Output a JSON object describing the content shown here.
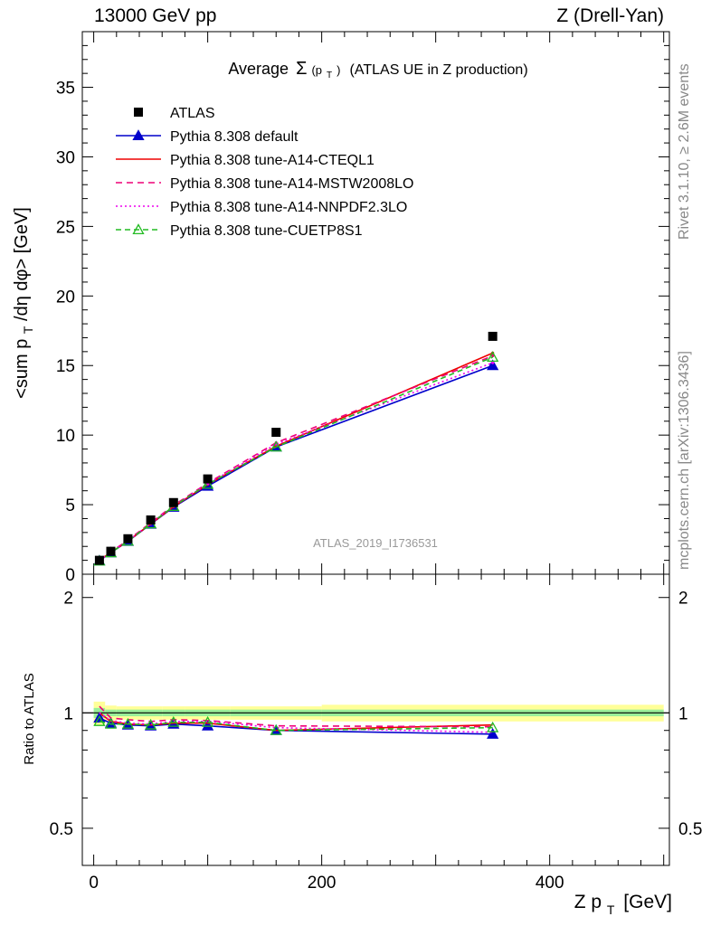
{
  "header": {
    "left": "13000 GeV pp",
    "right": "Z (Drell-Yan)"
  },
  "side_labels": {
    "rivet": "Rivet 3.1.10, ≥ 2.6M events",
    "mcplots": "mcplots.cern.ch [arXiv:1306.3436]"
  },
  "watermark": "ATLAS_2019_I1736531",
  "chart_data": {
    "type": "line",
    "title_prefix": "Average",
    "title_symbol": "Σ",
    "title_arg": "(p",
    "title_arg_sub": "T",
    "title_arg_close": ")",
    "title_suffix": "(ATLAS UE in Z production)",
    "xlabel": "Z p",
    "xlabel_sub": "T",
    "xlabel_unit": "[GeV]",
    "ylabel": "<sum p",
    "ylabel_sub": "T",
    "ylabel_rest": "/dη dφ> [GeV]",
    "ratio_ylabel": "Ratio to ATLAS",
    "xlim": [
      -10,
      505
    ],
    "ylim": [
      0,
      39
    ],
    "ratio_ylim": [
      0.4,
      2.3
    ],
    "x_ticks": [
      0,
      200,
      400
    ],
    "y_ticks": [
      0,
      5,
      10,
      15,
      20,
      25,
      30,
      35
    ],
    "ratio_ticks": [
      0.5,
      1,
      2
    ],
    "ratio_tick_labels": [
      "0.5",
      "1",
      "2"
    ],
    "x": [
      5,
      15,
      30,
      50,
      70,
      100,
      160,
      350
    ],
    "data": {
      "name": "ATLAS",
      "values": [
        1.0,
        1.65,
        2.55,
        3.9,
        5.15,
        6.85,
        10.2,
        17.1
      ],
      "band_edges": [
        0,
        10,
        20,
        40,
        60,
        80,
        120,
        200,
        500
      ],
      "band_inner": [
        0.03,
        0.02,
        0.02,
        0.02,
        0.02,
        0.02,
        0.02,
        0.02
      ],
      "band_outer": [
        0.07,
        0.045,
        0.04,
        0.04,
        0.04,
        0.04,
        0.04,
        0.05
      ]
    },
    "series": [
      {
        "name": "Pythia 8.308 default",
        "color": "#0000cc",
        "dash": "",
        "marker": "triangle-filled",
        "values": [
          0.97,
          1.55,
          2.37,
          3.6,
          4.82,
          6.33,
          9.15,
          15.0
        ]
      },
      {
        "name": "Pythia 8.308 tune-A14-CTEQL1",
        "color": "#ee0000",
        "dash": "",
        "marker": "",
        "values": [
          1.0,
          1.57,
          2.38,
          3.62,
          4.85,
          6.45,
          9.2,
          15.9
        ]
      },
      {
        "name": "Pythia 8.308 tune-A14-MSTW2008LO",
        "color": "#ee0077",
        "dash": "7,5",
        "marker": "",
        "values": [
          1.03,
          1.6,
          2.45,
          3.7,
          4.95,
          6.55,
          9.45,
          15.7
        ]
      },
      {
        "name": "Pythia 8.308 tune-A14-NNPDF2.3LO",
        "color": "#ee00ee",
        "dash": "2,3",
        "marker": "",
        "values": [
          1.0,
          1.58,
          2.4,
          3.65,
          4.9,
          6.5,
          9.35,
          15.2
        ]
      },
      {
        "name": "Pythia 8.308 tune-CUETP8S1",
        "color": "#22bb22",
        "dash": "6,4",
        "marker": "triangle-open",
        "values": [
          0.95,
          1.55,
          2.38,
          3.63,
          4.88,
          6.47,
          9.15,
          15.6
        ]
      }
    ],
    "ratio_series": [
      [
        0.97,
        0.94,
        0.93,
        0.925,
        0.935,
        0.925,
        0.9,
        0.88
      ],
      [
        1.0,
        0.95,
        0.935,
        0.93,
        0.94,
        0.94,
        0.9,
        0.93
      ],
      [
        1.04,
        0.97,
        0.96,
        0.95,
        0.96,
        0.955,
        0.925,
        0.92
      ],
      [
        1.0,
        0.955,
        0.94,
        0.935,
        0.95,
        0.95,
        0.915,
        0.89
      ],
      [
        0.95,
        0.935,
        0.935,
        0.93,
        0.945,
        0.945,
        0.9,
        0.915
      ]
    ]
  }
}
